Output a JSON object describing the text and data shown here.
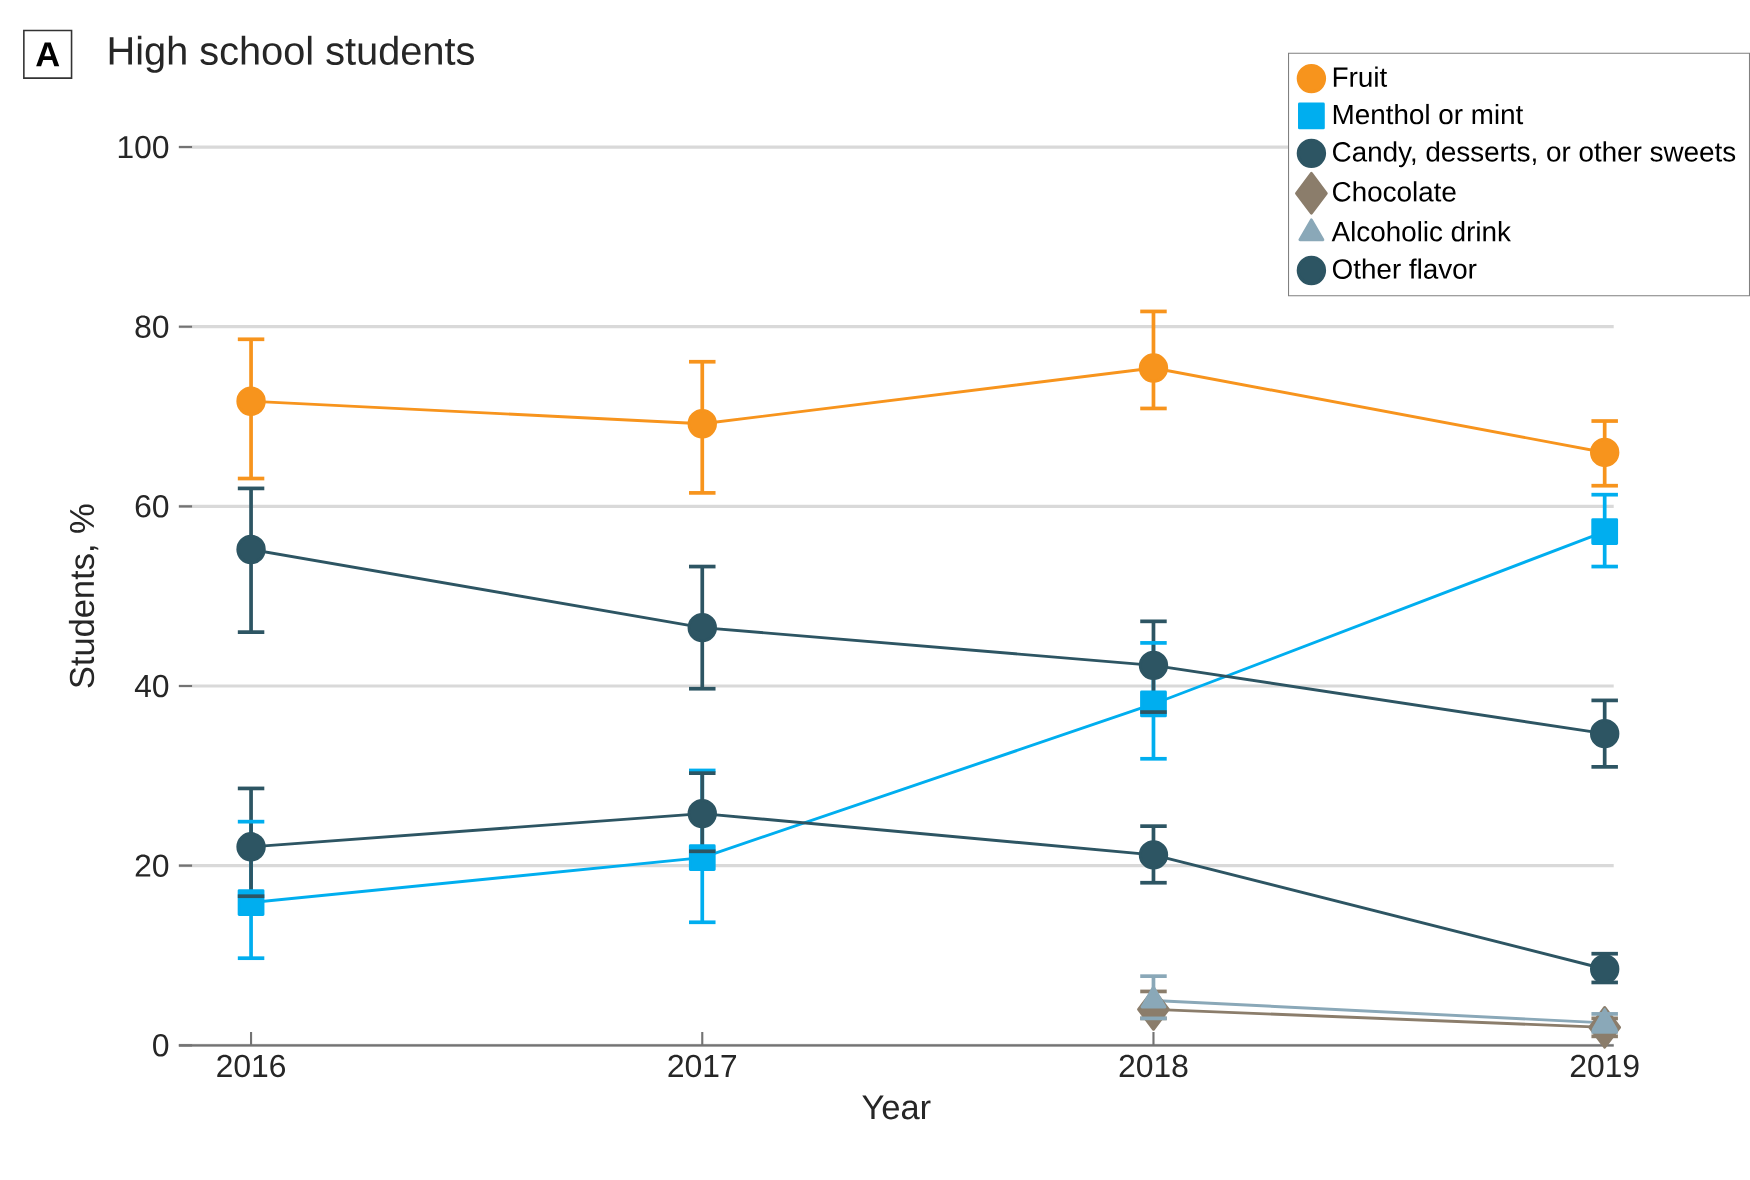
{
  "chart_data": {
    "type": "line",
    "title": "High school students",
    "annotations": [
      "A"
    ],
    "xlabel": "Year",
    "ylabel": "Students, %",
    "x": [
      2016,
      2017,
      2018,
      2019
    ],
    "xlim": [
      2015.84,
      2019.02
    ],
    "xticks": [
      2016,
      2017,
      2018,
      2019
    ],
    "ylim": [
      0,
      100
    ],
    "yticks": [
      0,
      20,
      40,
      60,
      80,
      100
    ],
    "grid": "y",
    "legend": "top right",
    "series": [
      {
        "name": "Fruit",
        "color": "#f7941d",
        "marker": "circle",
        "values": [
          71.7,
          69.2,
          75.4,
          66.0
        ],
        "errors": [
          [
            63.1,
            78.6
          ],
          [
            61.5,
            76.1
          ],
          [
            70.9,
            81.7
          ],
          [
            62.3,
            69.5
          ]
        ]
      },
      {
        "name": "Menthol or mint",
        "color": "#00aeef",
        "marker": "square",
        "values": [
          15.9,
          20.9,
          38.0,
          57.2
        ],
        "errors": [
          [
            9.7,
            24.9
          ],
          [
            13.7,
            30.6
          ],
          [
            31.9,
            44.8
          ],
          [
            53.3,
            61.3
          ]
        ]
      },
      {
        "name": "Candy, desserts, or other sweets",
        "color": "#2d5563",
        "marker": "circle",
        "values": [
          55.2,
          46.5,
          42.3,
          34.7
        ],
        "errors": [
          [
            46.0,
            62.0
          ],
          [
            39.7,
            53.3
          ],
          [
            37.1,
            47.2
          ],
          [
            31.0,
            38.4
          ]
        ]
      },
      {
        "name": "Chocolate",
        "color": "#8b7d6b",
        "marker": "diamond",
        "values": [
          null,
          null,
          4.0,
          2.0
        ],
        "errors": [
          null,
          null,
          [
            3.0,
            6.0
          ],
          [
            1.0,
            3.0
          ]
        ]
      },
      {
        "name": "Alcoholic drink",
        "color": "#8aa8b8",
        "marker": "triangle",
        "values": [
          null,
          null,
          5.0,
          2.5
        ],
        "errors": [
          null,
          null,
          [
            3.0,
            7.7
          ],
          [
            1.5,
            3.5
          ]
        ]
      },
      {
        "name": "Other flavor",
        "color": "#2d5563",
        "marker": "circle",
        "values": [
          22.1,
          25.8,
          21.2,
          8.5
        ],
        "errors": [
          [
            16.6,
            28.6
          ],
          [
            21.6,
            30.3
          ],
          [
            18.1,
            24.4
          ],
          [
            7.0,
            10.2
          ]
        ]
      }
    ]
  }
}
